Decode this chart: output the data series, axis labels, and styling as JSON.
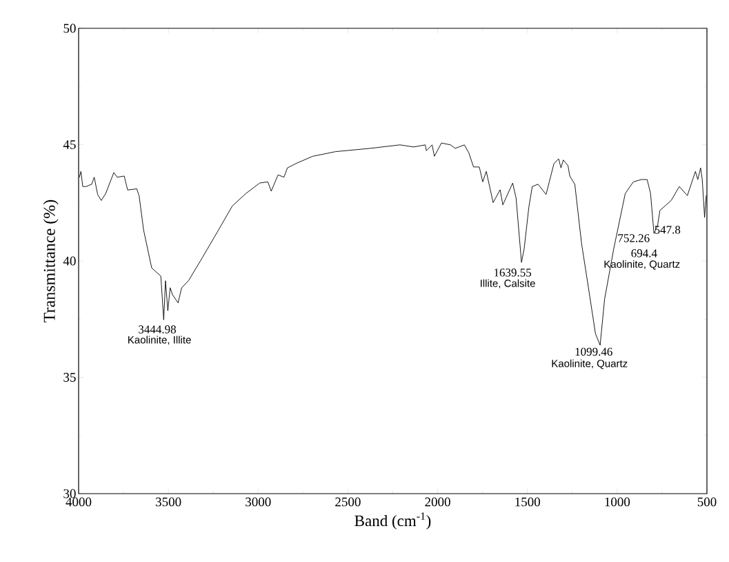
{
  "chart_data": {
    "type": "line",
    "xlabel": "Band (cm$^{-1}$)",
    "ylabel": "Transmittance (%)",
    "xlim": [
      4000,
      500
    ],
    "ylim": [
      30,
      50
    ],
    "xticks": [
      4000,
      3500,
      3000,
      2500,
      2000,
      1500,
      1000,
      500
    ],
    "yticks": [
      30,
      35,
      40,
      45,
      50
    ],
    "grid": false,
    "marker": "none",
    "line_style": "solid",
    "series": [
      {
        "color": "#000000",
        "x": [
          3996,
          3987,
          3977,
          3958,
          3927,
          3913,
          3894,
          3874,
          3849,
          3804,
          3785,
          3746,
          3727,
          3676,
          3663,
          3638,
          3593,
          3542,
          3526,
          3516,
          3503,
          3490,
          3477,
          3446,
          3426,
          3388,
          3311,
          3221,
          3144,
          3068,
          2991,
          2946,
          2927,
          2889,
          2856,
          2837,
          2786,
          2696,
          2568,
          2376,
          2210,
          2133,
          2069,
          2063,
          2031,
          2018,
          1979,
          1928,
          1902,
          1851,
          1826,
          1800,
          1768,
          1749,
          1729,
          1691,
          1652,
          1637,
          1582,
          1563,
          1533,
          1518,
          1492,
          1473,
          1441,
          1396,
          1352,
          1326,
          1313,
          1300,
          1274,
          1264,
          1236,
          1198,
          1160,
          1121,
          1095,
          1070,
          1019,
          955,
          910,
          865,
          833,
          814,
          795,
          775,
          762,
          699,
          654,
          609,
          564,
          551,
          535,
          526,
          513,
          504
        ],
        "values": [
          43.6,
          43.85,
          43.2,
          43.2,
          43.3,
          43.6,
          42.86,
          42.6,
          42.9,
          43.8,
          43.6,
          43.65,
          43.05,
          43.1,
          42.8,
          41.33,
          39.7,
          39.35,
          37.47,
          39.15,
          37.86,
          38.85,
          38.55,
          38.2,
          38.85,
          39.15,
          40.14,
          41.33,
          42.36,
          42.9,
          43.35,
          43.4,
          43.0,
          43.7,
          43.6,
          44.0,
          44.2,
          44.5,
          44.7,
          44.84,
          44.99,
          44.9,
          44.99,
          44.74,
          44.99,
          44.5,
          45.07,
          44.99,
          44.84,
          44.99,
          44.64,
          44.04,
          44.04,
          43.4,
          43.85,
          42.51,
          43.06,
          42.41,
          43.35,
          42.7,
          39.94,
          40.53,
          42.31,
          43.2,
          43.3,
          42.86,
          44.19,
          44.39,
          44.0,
          44.34,
          44.1,
          43.65,
          43.3,
          40.73,
          38.85,
          36.88,
          36.38,
          38.36,
          40.53,
          42.9,
          43.4,
          43.5,
          43.5,
          42.9,
          41.18,
          41.52,
          42.17,
          42.6,
          43.2,
          42.81,
          43.85,
          43.5,
          44.0,
          43.5,
          41.87,
          42.81
        ]
      }
    ],
    "annotations": [
      "3444.98",
      "Kaolinite, Illite",
      "1639.55",
      "Illite, Calsite",
      "1099.46",
      "Kaolinite, Quartz",
      "752.26",
      "547.8",
      "694.4",
      "Kaolinite, Quartz"
    ]
  }
}
